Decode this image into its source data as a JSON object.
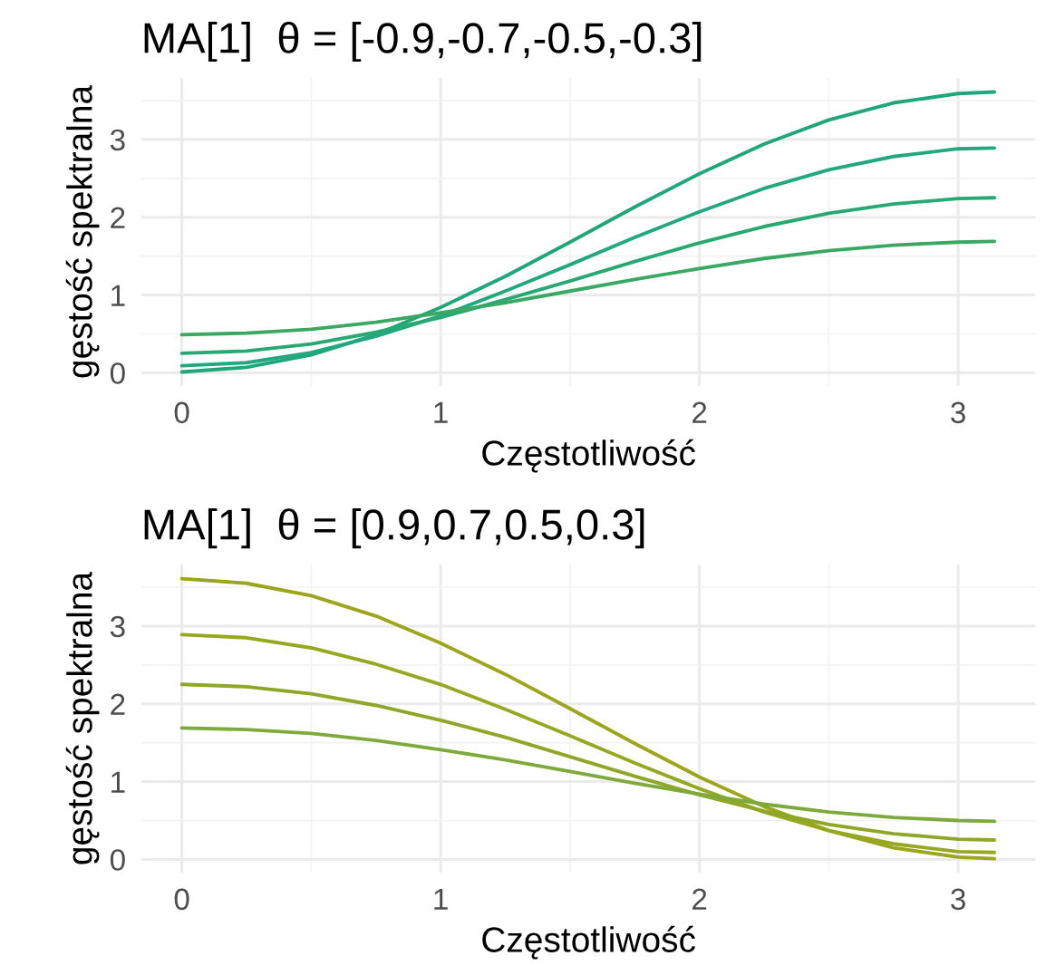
{
  "chart_data": [
    {
      "type": "line",
      "title": "MA[1]  θ = [-0.9,-0.7,-0.5,-0.3]",
      "xlabel": "Częstotliwość",
      "ylabel": "gęstość spektralna",
      "x": [
        0,
        0.25,
        0.5,
        0.75,
        1,
        1.25,
        1.5,
        1.75,
        2,
        2.25,
        2.5,
        2.75,
        3,
        3.14
      ],
      "xlim": [
        -0.157,
        3.299
      ],
      "xticks": [
        0,
        1,
        2,
        3
      ],
      "ylim": [
        -0.17,
        3.79
      ],
      "yticks": [
        0,
        1,
        2,
        3
      ],
      "grid": true,
      "series": [
        {
          "color": "#1fa67a",
          "values": [
            0.01,
            0.07,
            0.23,
            0.49,
            0.84,
            1.24,
            1.68,
            2.13,
            2.56,
            2.94,
            3.25,
            3.47,
            3.59,
            3.61
          ]
        },
        {
          "color": "#22a87f",
          "values": [
            0.09,
            0.13,
            0.26,
            0.47,
            0.73,
            1.05,
            1.39,
            1.74,
            2.07,
            2.37,
            2.61,
            2.78,
            2.88,
            2.89
          ]
        },
        {
          "color": "#28a874",
          "values": [
            0.25,
            0.28,
            0.37,
            0.52,
            0.71,
            0.94,
            1.18,
            1.43,
            1.67,
            1.88,
            2.05,
            2.17,
            2.24,
            2.25
          ]
        },
        {
          "color": "#38a862",
          "values": [
            0.49,
            0.51,
            0.56,
            0.65,
            0.77,
            0.9,
            1.05,
            1.2,
            1.34,
            1.47,
            1.57,
            1.64,
            1.68,
            1.69
          ]
        }
      ]
    },
    {
      "type": "line",
      "title": "MA[1]  θ = [0.9,0.7,0.5,0.3]",
      "xlabel": "Częstotliwość",
      "ylabel": "gęstość spektralna",
      "x": [
        0,
        0.25,
        0.5,
        0.75,
        1,
        1.25,
        1.5,
        1.75,
        2,
        2.25,
        2.5,
        2.75,
        3,
        3.14
      ],
      "xlim": [
        -0.157,
        3.299
      ],
      "xticks": [
        0,
        1,
        2,
        3
      ],
      "ylim": [
        -0.17,
        3.79
      ],
      "yticks": [
        0,
        1,
        2,
        3
      ],
      "grid": true,
      "series": [
        {
          "color": "#9ba61b",
          "values": [
            3.61,
            3.55,
            3.39,
            3.13,
            2.78,
            2.38,
            1.94,
            1.49,
            1.06,
            0.68,
            0.37,
            0.15,
            0.03,
            0.01
          ]
        },
        {
          "color": "#95a820",
          "values": [
            2.89,
            2.85,
            2.72,
            2.51,
            2.25,
            1.93,
            1.59,
            1.24,
            0.91,
            0.61,
            0.37,
            0.2,
            0.1,
            0.09
          ]
        },
        {
          "color": "#8ea726",
          "values": [
            2.25,
            2.22,
            2.13,
            1.98,
            1.79,
            1.57,
            1.32,
            1.07,
            0.83,
            0.62,
            0.45,
            0.33,
            0.26,
            0.25
          ]
        },
        {
          "color": "#7daa3a",
          "values": [
            1.69,
            1.67,
            1.62,
            1.53,
            1.41,
            1.28,
            1.13,
            0.98,
            0.84,
            0.71,
            0.61,
            0.54,
            0.5,
            0.49
          ]
        }
      ]
    }
  ]
}
